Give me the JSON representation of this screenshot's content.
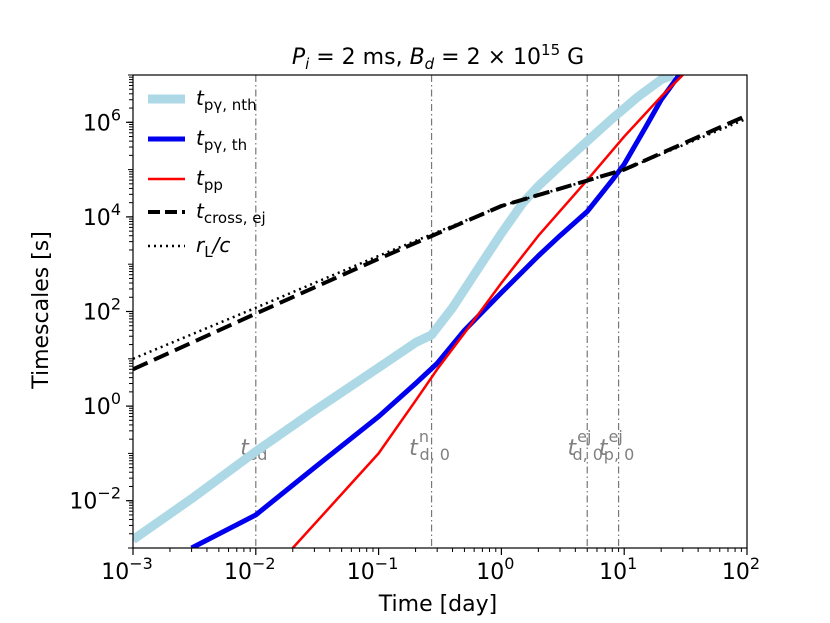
{
  "chart_data": {
    "type": "line",
    "title": "P_i = 2 ms, B_d = 2 × 10^15 G",
    "title_parts": {
      "p": "P",
      "p_sub": "i",
      "p_val": " = 2 ms, ",
      "b": "B",
      "b_sub": "d",
      "b_val": " = 2 × 10",
      "b_exp": "15",
      "b_unit": " G"
    },
    "xlabel": "Time [day]",
    "ylabel": "Timescales [s]",
    "xscale": "log",
    "yscale": "log",
    "xlim": [
      0.001,
      100
    ],
    "ylim": [
      0.001,
      10000000
    ],
    "x_ticks": [
      {
        "value": 0.001,
        "base": "10",
        "exp": "−3"
      },
      {
        "value": 0.01,
        "base": "10",
        "exp": "−2"
      },
      {
        "value": 0.1,
        "base": "10",
        "exp": "−1"
      },
      {
        "value": 1,
        "base": "10",
        "exp": "0"
      },
      {
        "value": 10,
        "base": "10",
        "exp": "1"
      },
      {
        "value": 100,
        "base": "10",
        "exp": "2"
      }
    ],
    "y_ticks": [
      {
        "value": 0.01,
        "base": "10",
        "exp": "−2"
      },
      {
        "value": 1,
        "base": "10",
        "exp": "0"
      },
      {
        "value": 100,
        "base": "10",
        "exp": "2"
      },
      {
        "value": 10000,
        "base": "10",
        "exp": "4"
      },
      {
        "value": 1000000,
        "base": "10",
        "exp": "6"
      }
    ],
    "series": [
      {
        "name": "t_pγ, nth",
        "label_main": "t",
        "label_sub": "pγ, nth",
        "color": "#add8e6",
        "style": "solid",
        "width": 9,
        "x": [
          0.001,
          0.003,
          0.01,
          0.03,
          0.1,
          0.2,
          0.27,
          0.4,
          0.6,
          1,
          1.5,
          2,
          3,
          5,
          8,
          13,
          20,
          25
        ],
        "y": [
          0.0015,
          0.011,
          0.11,
          0.8,
          6.5,
          22,
          32,
          120,
          600,
          4500,
          20000,
          45000,
          120000,
          400000,
          1200000,
          3500000,
          8000000,
          10000000
        ]
      },
      {
        "name": "t_pγ, th",
        "label_main": "t",
        "label_sub": "pγ, th",
        "color": "#0000ee",
        "style": "solid",
        "width": 5,
        "x": [
          0.003,
          0.01,
          0.03,
          0.1,
          0.2,
          0.3,
          0.5,
          1,
          2,
          3,
          5,
          8,
          10,
          15,
          20,
          28
        ],
        "y": [
          0.001,
          0.005,
          0.05,
          0.6,
          3,
          8,
          40,
          250,
          1500,
          4000,
          13000,
          60000,
          130000,
          800000,
          3000000,
          10000000
        ]
      },
      {
        "name": "t_pp",
        "label_main": "t",
        "label_sub": "pp",
        "color": "#ff0000",
        "style": "solid",
        "width": 2.5,
        "x": [
          0.02,
          0.1,
          0.2,
          0.3,
          0.5,
          1,
          2,
          5,
          10,
          20,
          30
        ],
        "y": [
          0.001,
          0.1,
          1.3,
          6,
          35,
          400,
          4000,
          60000,
          500000,
          3500000,
          10000000
        ]
      },
      {
        "name": "t_cross, ej",
        "label_main": "t",
        "label_sub": "cross, ej",
        "color": "#000000",
        "style": "dashed",
        "width": 4,
        "x": [
          0.001,
          0.01,
          0.1,
          1,
          10,
          100
        ],
        "y": [
          6,
          90,
          1300,
          17000,
          100000,
          1400000
        ]
      },
      {
        "name": "r_L/c",
        "label_main": "r",
        "label_sub": "L",
        "label_tail": "/c",
        "color": "#000000",
        "style": "dotted",
        "width": 2.5,
        "x": [
          0.001,
          0.01,
          0.1,
          1,
          10,
          100
        ],
        "y": [
          10,
          120,
          1500,
          17000,
          100000,
          1200000
        ]
      }
    ],
    "vertical_markers": [
      {
        "x": 0.01,
        "main": "t",
        "sub": "sd",
        "sup": ""
      },
      {
        "x": 0.27,
        "main": "t",
        "sub": "d, 0",
        "sup": "n"
      },
      {
        "x": 5,
        "main": "t",
        "sub": "d, 0",
        "sup": "ej"
      },
      {
        "x": 9,
        "main": "t",
        "sub": "p, 0",
        "sup": "ej"
      }
    ],
    "legend_position": "upper-left"
  }
}
